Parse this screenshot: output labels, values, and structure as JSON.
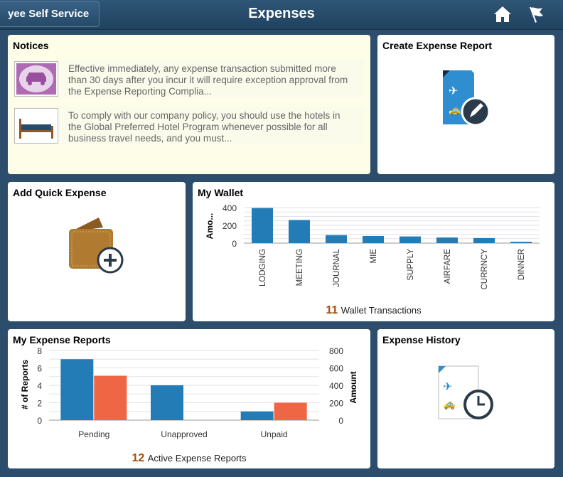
{
  "header": {
    "back_label": "yee Self Service",
    "title": "Expenses",
    "home_icon": "home-icon",
    "flag_icon": "flag-icon"
  },
  "notices": {
    "title": "Notices",
    "items": [
      {
        "icon": "car-icon",
        "text": "Effective immediately, any expense transaction submitted more than 30 days after you incur it will require exception approval from the Expense Reporting Complia..."
      },
      {
        "icon": "bed-icon",
        "text": "To comply with our company policy, you should use the hotels in the Global Preferred Hotel Program whenever possible for all business travel needs, and you must..."
      }
    ]
  },
  "create_report": {
    "title": "Create Expense Report"
  },
  "quick_expense": {
    "title": "Add Quick Expense"
  },
  "wallet": {
    "title": "My Wallet",
    "count": "11",
    "count_label": "Wallet Transactions"
  },
  "reports": {
    "title": "My Expense Reports",
    "count": "12",
    "count_label": "Active Expense Reports"
  },
  "history": {
    "title": "Expense History"
  },
  "colors": {
    "blue": "#237cb5",
    "orange": "#ef6644",
    "count": "#a34e0e"
  },
  "chart_data": [
    {
      "type": "bar",
      "title": "My Wallet",
      "ylabel": "Amo...",
      "ylim": [
        0,
        400
      ],
      "yticks": [
        "400",
        "200",
        "0"
      ],
      "categories": [
        "LODGING",
        "MEETING",
        "JOURNAL",
        "MIE",
        "SUPPLY",
        "AIRFARE",
        "CURRNCY",
        "DINNER"
      ],
      "values": [
        395,
        260,
        90,
        80,
        75,
        63,
        57,
        15
      ]
    },
    {
      "type": "bar",
      "title": "My Expense Reports",
      "ylabel": "# of Reports",
      "y2label": "Amount",
      "ylim": [
        0,
        8
      ],
      "y2lim": [
        0,
        800
      ],
      "yticks": [
        "8",
        "6",
        "4",
        "2",
        "0"
      ],
      "y2ticks": [
        "800",
        "600",
        "400",
        "200",
        "0"
      ],
      "categories": [
        "Pending",
        "Unapproved",
        "Unpaid"
      ],
      "series": [
        {
          "name": "# of Reports",
          "axis": "left",
          "values": [
            7,
            4,
            1
          ]
        },
        {
          "name": "Amount",
          "axis": "right",
          "values": [
            510,
            0,
            200
          ]
        }
      ]
    }
  ]
}
